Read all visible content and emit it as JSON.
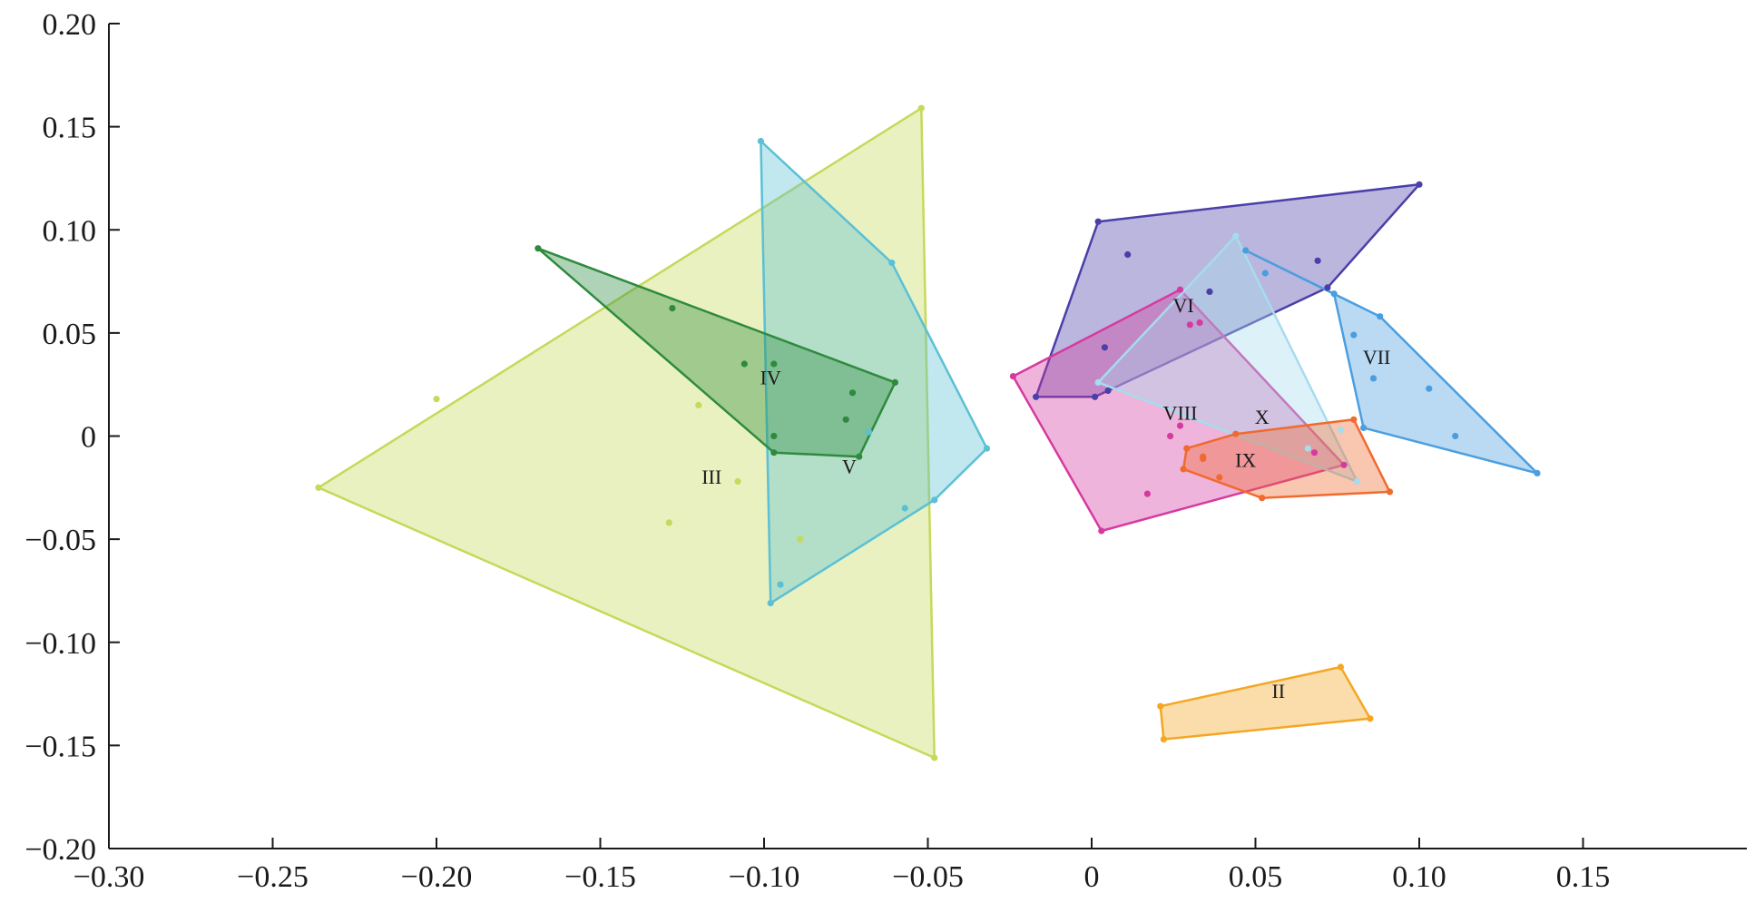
{
  "chart_data": {
    "type": "scatter",
    "title": "",
    "xlabel": "",
    "ylabel": "",
    "xlim": [
      -0.3,
      0.2
    ],
    "ylim": [
      -0.2,
      0.2
    ],
    "grid": false,
    "x_ticks": [
      -0.3,
      -0.25,
      -0.2,
      -0.15,
      -0.1,
      -0.05,
      0,
      0.05,
      0.1,
      0.15
    ],
    "x_tick_labels": [
      "−0.30",
      "−0.25",
      "−0.20",
      "−0.15",
      "−0.10",
      "−0.05",
      "0",
      "0.05",
      "0.10",
      "0.15"
    ],
    "y_ticks": [
      0.2,
      0.15,
      0.1,
      0.05,
      0,
      -0.05,
      -0.1,
      -0.15,
      -0.2
    ],
    "y_tick_labels": [
      "0.20",
      "0.15",
      "0.10",
      "0.05",
      "0",
      "−0.05",
      "−0.10",
      "−0.15",
      "−0.20"
    ],
    "series": [
      {
        "name": "III",
        "color": "#c5d95a",
        "hull": [
          [
            -0.236,
            -0.025
          ],
          [
            -0.052,
            0.159
          ],
          [
            -0.048,
            -0.156
          ]
        ],
        "points": [
          [
            -0.236,
            -0.025
          ],
          [
            -0.052,
            0.159
          ],
          [
            -0.048,
            -0.156
          ],
          [
            -0.2,
            0.018
          ],
          [
            -0.12,
            0.015
          ],
          [
            -0.108,
            -0.022
          ],
          [
            -0.129,
            -0.042
          ],
          [
            -0.089,
            -0.05
          ]
        ],
        "label_at": [
          -0.116,
          -0.023
        ]
      },
      {
        "name": "V",
        "color": "#5bc0d5",
        "hull": [
          [
            -0.101,
            0.143
          ],
          [
            -0.061,
            0.084
          ],
          [
            -0.032,
            -0.006
          ],
          [
            -0.048,
            -0.031
          ],
          [
            -0.098,
            -0.081
          ]
        ],
        "points": [
          [
            -0.101,
            0.143
          ],
          [
            -0.061,
            0.084
          ],
          [
            -0.032,
            -0.006
          ],
          [
            -0.048,
            -0.031
          ],
          [
            -0.098,
            -0.081
          ],
          [
            -0.057,
            -0.035
          ],
          [
            -0.095,
            -0.072
          ],
          [
            -0.068,
            0.002
          ]
        ],
        "label_at": [
          -0.074,
          -0.018
        ]
      },
      {
        "name": "IV",
        "color": "#2e8b3e",
        "hull": [
          [
            -0.169,
            0.091
          ],
          [
            -0.06,
            0.026
          ],
          [
            -0.071,
            -0.01
          ],
          [
            -0.097,
            -0.008
          ]
        ],
        "points": [
          [
            -0.169,
            0.091
          ],
          [
            -0.06,
            0.026
          ],
          [
            -0.071,
            -0.01
          ],
          [
            -0.097,
            -0.008
          ],
          [
            -0.128,
            0.062
          ],
          [
            -0.106,
            0.035
          ],
          [
            -0.097,
            0.035
          ],
          [
            -0.073,
            0.021
          ],
          [
            -0.075,
            0.008
          ],
          [
            -0.097,
            0.0
          ]
        ],
        "label_at": [
          -0.098,
          0.025
        ]
      },
      {
        "name": "VI",
        "color": "#4a3fa8",
        "hull": [
          [
            0.002,
            0.104
          ],
          [
            0.1,
            0.122
          ],
          [
            0.072,
            0.072
          ],
          [
            0.001,
            0.019
          ],
          [
            -0.017,
            0.019
          ]
        ],
        "points": [
          [
            0.002,
            0.104
          ],
          [
            0.1,
            0.122
          ],
          [
            0.072,
            0.072
          ],
          [
            0.001,
            0.019
          ],
          [
            -0.017,
            0.019
          ],
          [
            0.011,
            0.088
          ],
          [
            0.069,
            0.085
          ],
          [
            0.036,
            0.07
          ],
          [
            0.004,
            0.043
          ],
          [
            0.005,
            0.022
          ]
        ],
        "label_at": [
          0.028,
          0.06
        ]
      },
      {
        "name": "VII",
        "color": "#4a9ee0",
        "hull": [
          [
            0.047,
            0.09
          ],
          [
            0.088,
            0.058
          ],
          [
            0.136,
            -0.018
          ],
          [
            0.083,
            0.004
          ],
          [
            0.074,
            0.069
          ]
        ],
        "points": [
          [
            0.047,
            0.09
          ],
          [
            0.088,
            0.058
          ],
          [
            0.136,
            -0.018
          ],
          [
            0.083,
            0.004
          ],
          [
            0.074,
            0.069
          ],
          [
            0.053,
            0.079
          ],
          [
            0.08,
            0.049
          ],
          [
            0.086,
            0.028
          ],
          [
            0.103,
            0.023
          ],
          [
            0.111,
            0.0
          ]
        ],
        "label_at": [
          0.087,
          0.035
        ]
      },
      {
        "name": "VIII",
        "color": "#d63aa0",
        "hull": [
          [
            -0.024,
            0.029
          ],
          [
            0.027,
            0.071
          ],
          [
            0.077,
            -0.014
          ],
          [
            0.003,
            -0.046
          ]
        ],
        "points": [
          [
            -0.024,
            0.029
          ],
          [
            0.027,
            0.071
          ],
          [
            0.077,
            -0.014
          ],
          [
            0.003,
            -0.046
          ],
          [
            0.03,
            0.054
          ],
          [
            0.033,
            0.055
          ],
          [
            0.024,
            0.0
          ],
          [
            0.027,
            0.005
          ],
          [
            0.017,
            -0.028
          ],
          [
            0.068,
            -0.008
          ]
        ],
        "label_at": [
          0.027,
          0.008
        ]
      },
      {
        "name": "X",
        "color": "#a6dced",
        "hull": [
          [
            0.044,
            0.097
          ],
          [
            0.081,
            -0.022
          ],
          [
            0.002,
            0.026
          ]
        ],
        "points": [
          [
            0.044,
            0.097
          ],
          [
            0.081,
            -0.022
          ],
          [
            0.002,
            0.026
          ],
          [
            0.076,
            0.003
          ],
          [
            0.066,
            -0.006
          ]
        ],
        "label_at": [
          0.052,
          0.006
        ]
      },
      {
        "name": "IX",
        "color": "#f06a2e",
        "hull": [
          [
            0.029,
            -0.006
          ],
          [
            0.044,
            0.001
          ],
          [
            0.08,
            0.008
          ],
          [
            0.091,
            -0.027
          ],
          [
            0.052,
            -0.03
          ],
          [
            0.028,
            -0.016
          ]
        ],
        "points": [
          [
            0.029,
            -0.006
          ],
          [
            0.044,
            0.001
          ],
          [
            0.08,
            0.008
          ],
          [
            0.091,
            -0.027
          ],
          [
            0.052,
            -0.03
          ],
          [
            0.028,
            -0.016
          ],
          [
            0.034,
            -0.01
          ],
          [
            0.034,
            -0.011
          ],
          [
            0.039,
            -0.02
          ]
        ],
        "label_at": [
          0.047,
          -0.015
        ]
      },
      {
        "name": "II",
        "color": "#f5a623",
        "hull": [
          [
            0.021,
            -0.131
          ],
          [
            0.076,
            -0.112
          ],
          [
            0.085,
            -0.137
          ],
          [
            0.022,
            -0.147
          ]
        ],
        "points": [
          [
            0.021,
            -0.131
          ],
          [
            0.076,
            -0.112
          ],
          [
            0.085,
            -0.137
          ],
          [
            0.022,
            -0.147
          ]
        ],
        "label_at": [
          0.057,
          -0.127
        ]
      }
    ]
  }
}
